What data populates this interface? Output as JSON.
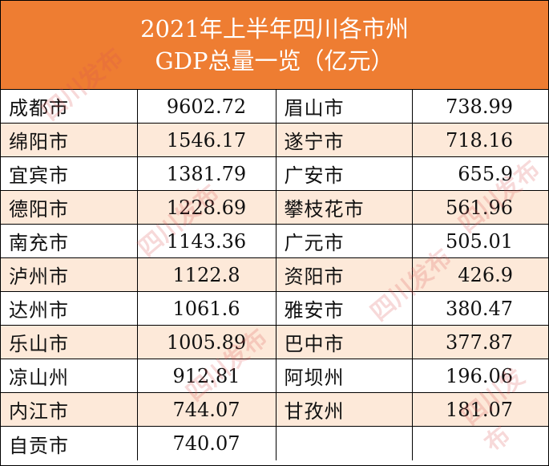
{
  "title": {
    "line1": "2021年上半年四川各市州",
    "line2": "GDP总量一览（亿元）"
  },
  "rows": [
    {
      "c1": "成都市",
      "v1": "9602.72",
      "c2": "眉山市",
      "v2": "738.99"
    },
    {
      "c1": "绵阳市",
      "v1": "1546.17",
      "c2": "遂宁市",
      "v2": "718.16"
    },
    {
      "c1": "宜宾市",
      "v1": "1381.79",
      "c2": "广安市",
      "v2": "655.9"
    },
    {
      "c1": "德阳市",
      "v1": "1228.69",
      "c2": "攀枝花市",
      "v2": "561.96"
    },
    {
      "c1": "南充市",
      "v1": "1143.36",
      "c2": "广元市",
      "v2": "505.01"
    },
    {
      "c1": "泸州市",
      "v1": "1122.8",
      "c2": "资阳市",
      "v2": "426.9"
    },
    {
      "c1": "达州市",
      "v1": "1061.6",
      "c2": "雅安市",
      "v2": "380.47"
    },
    {
      "c1": "乐山市",
      "v1": "1005.89",
      "c2": "巴中市",
      "v2": "377.87"
    },
    {
      "c1": "凉山州",
      "v1": "912.81",
      "c2": "阿坝州",
      "v2": "196.06"
    },
    {
      "c1": "内江市",
      "v1": "744.07",
      "c2": "甘孜州",
      "v2": "181.07"
    },
    {
      "c1": "自贡市",
      "v1": "740.07",
      "c2": "",
      "v2": ""
    }
  ],
  "watermark": "四川发布",
  "colors": {
    "header_bg": "#ee7d32",
    "alt_row_bg": "#fde9d9",
    "header_text": "#ffffff"
  }
}
